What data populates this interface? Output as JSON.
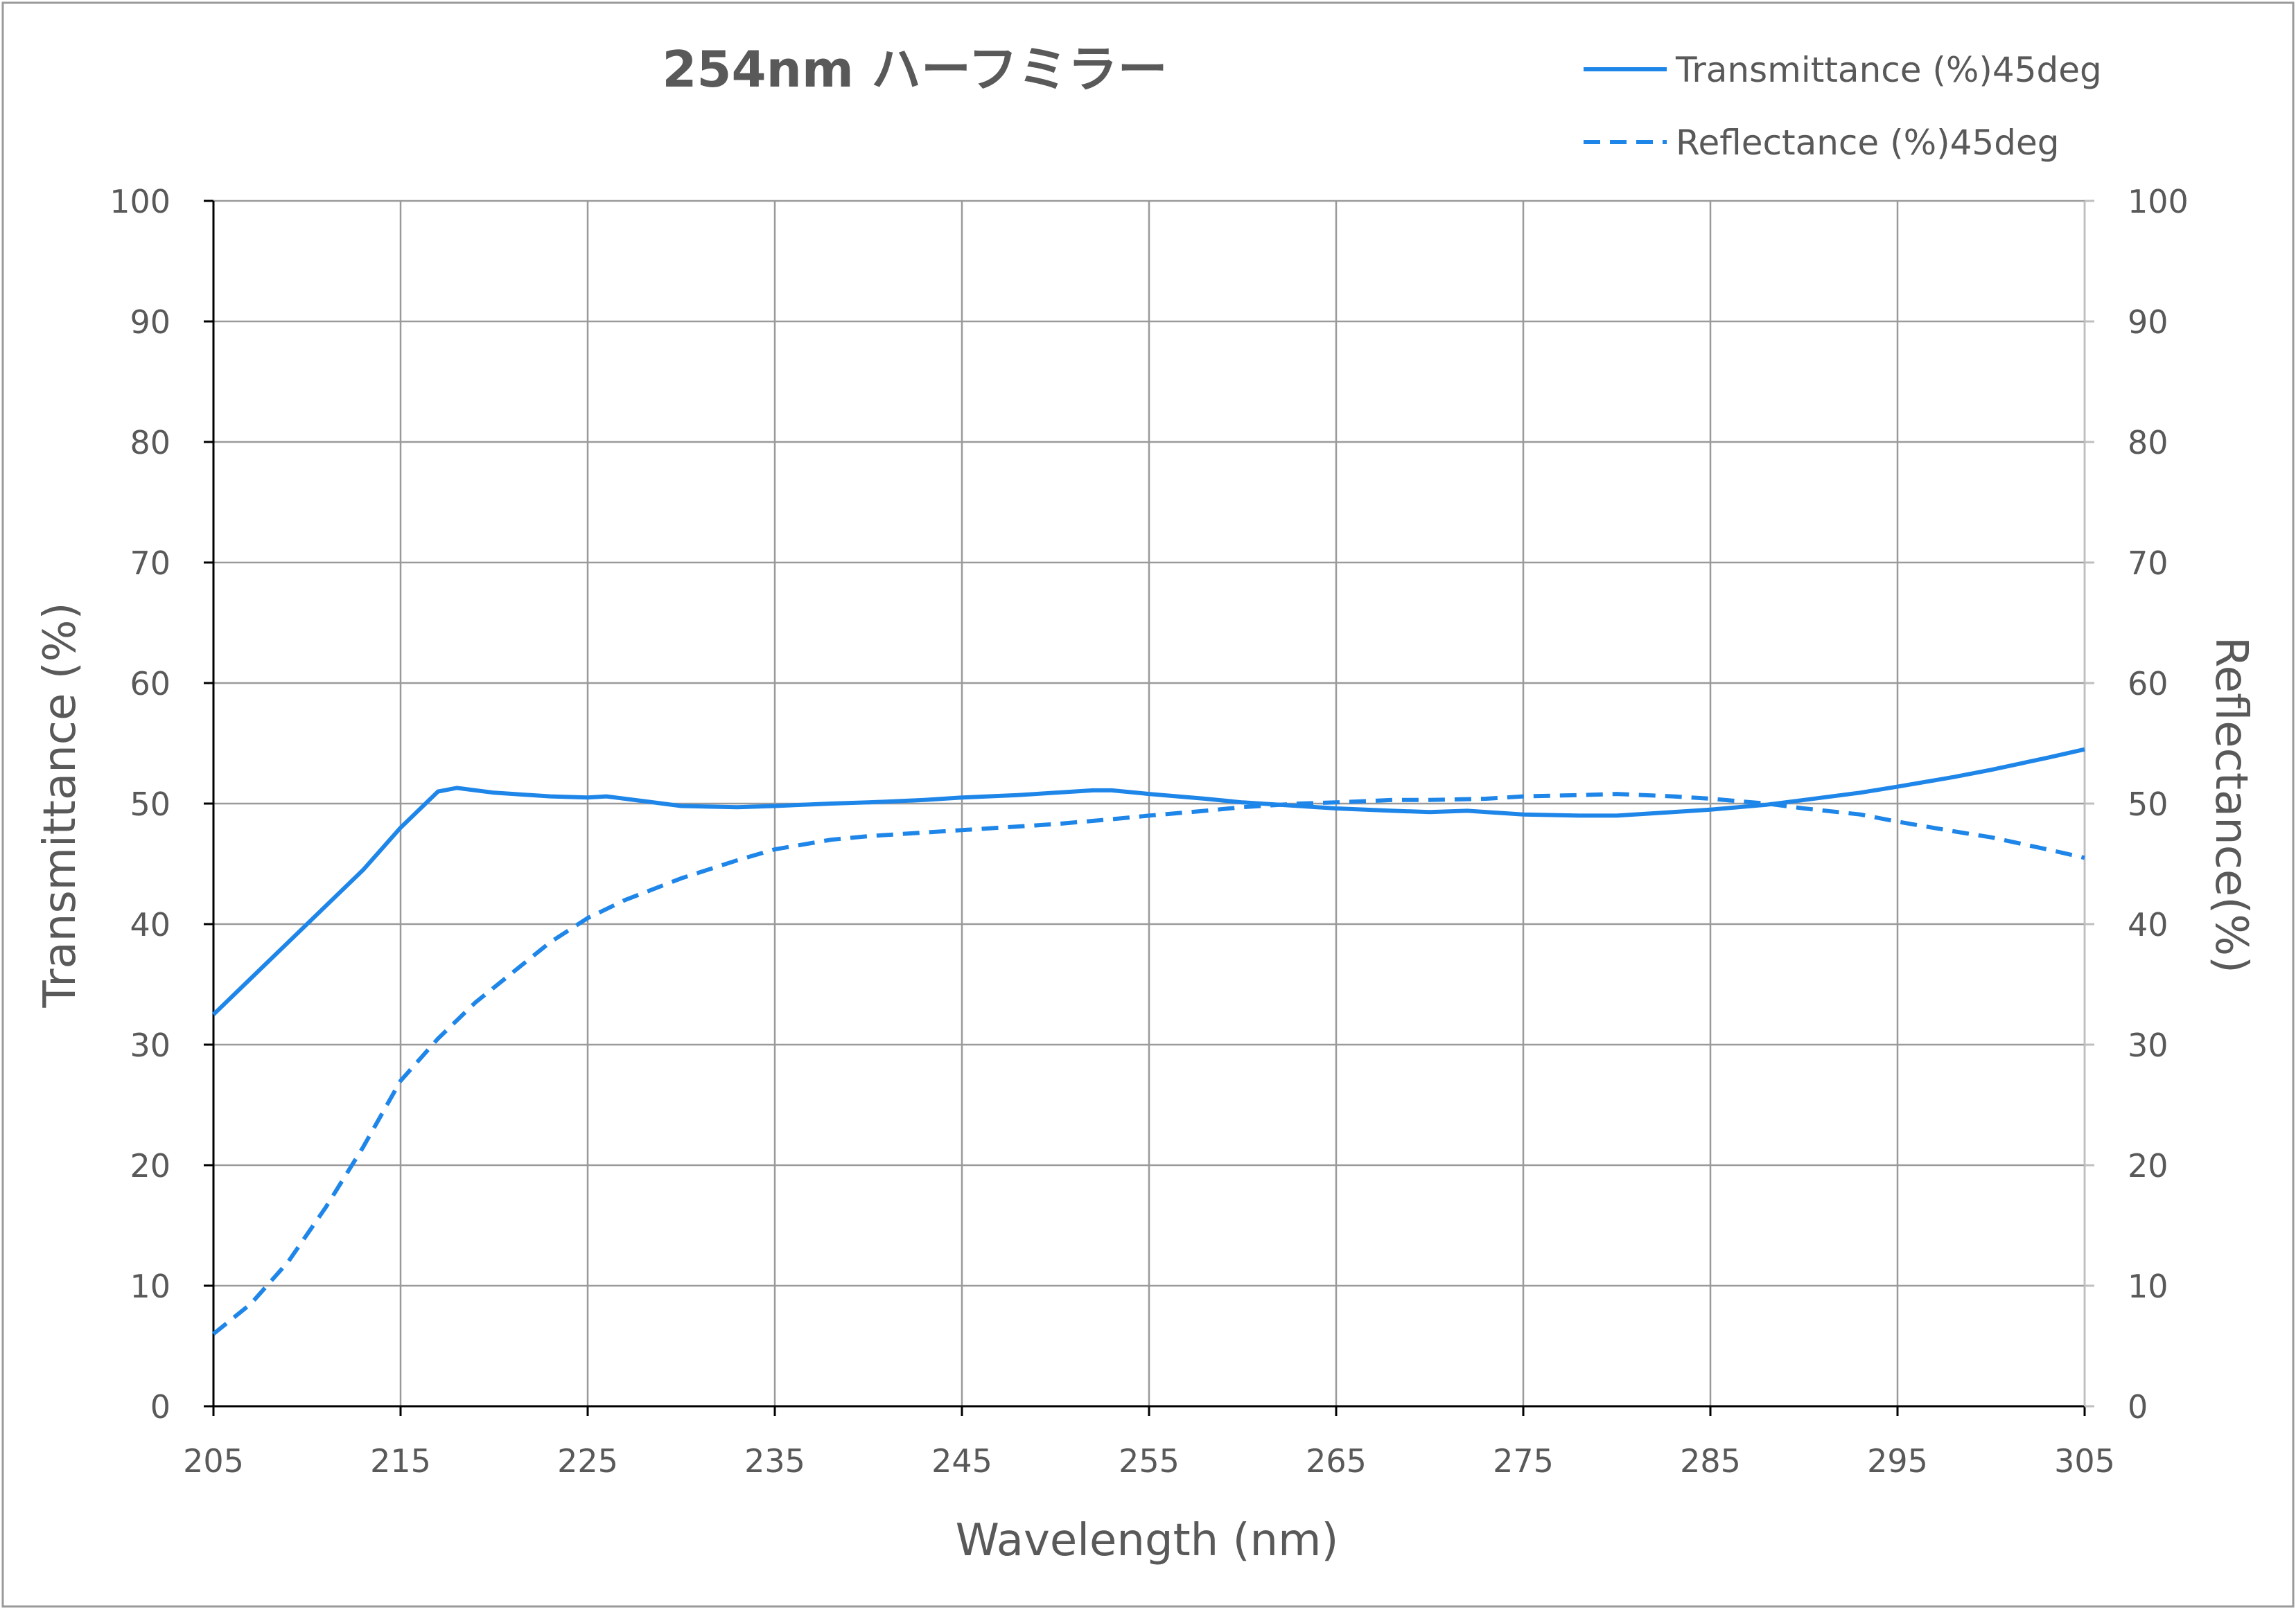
{
  "chart_data": {
    "type": "line",
    "title": "254nm ハーフミラー",
    "xlabel": "Wavelength (nm)",
    "ylabel": "Transmittance (%)",
    "y2label": "Reflectance(%)",
    "xlim": [
      205,
      305
    ],
    "ylim": [
      0,
      100
    ],
    "y2lim": [
      0,
      100
    ],
    "x_ticks": [
      "205",
      "215",
      "225",
      "235",
      "245",
      "255",
      "265",
      "275",
      "285",
      "295",
      "305"
    ],
    "y_ticks": [
      "0",
      "10",
      "20",
      "30",
      "40",
      "50",
      "60",
      "70",
      "80",
      "90",
      "100"
    ],
    "y2_ticks": [
      "0",
      "10",
      "20",
      "30",
      "40",
      "50",
      "60",
      "70",
      "80",
      "90",
      "100"
    ],
    "grid": true,
    "legend_position": "top-right",
    "series": [
      {
        "name": "Transmittance (%)45deg",
        "axis": "left",
        "style": "solid",
        "color": "#1F86E9",
        "x": [
          205,
          207,
          210,
          213,
          215,
          217,
          218,
          220,
          223,
          225,
          226,
          228,
          230,
          233,
          235,
          238,
          240,
          243,
          245,
          248,
          250,
          252,
          253,
          255,
          258,
          260,
          263,
          265,
          268,
          270,
          272,
          275,
          278,
          280,
          283,
          285,
          288,
          290,
          293,
          295,
          298,
          300,
          303,
          305
        ],
        "y": [
          32.5,
          35.5,
          40,
          44.5,
          48,
          51,
          51.3,
          50.9,
          50.6,
          50.5,
          50.6,
          50.2,
          49.8,
          49.7,
          49.8,
          50,
          50.1,
          50.3,
          50.5,
          50.7,
          50.9,
          51.1,
          51.1,
          50.8,
          50.4,
          50.1,
          49.8,
          49.6,
          49.4,
          49.3,
          49.4,
          49.1,
          49,
          49,
          49.3,
          49.5,
          49.9,
          50.3,
          50.9,
          51.4,
          52.2,
          52.8,
          53.8,
          54.5
        ]
      },
      {
        "name": "Reflectance (%)45deg",
        "axis": "right",
        "style": "dashed",
        "color": "#1F86E9",
        "x": [
          205,
          207,
          209,
          211,
          213,
          215,
          217,
          219,
          221,
          223,
          225,
          227,
          230,
          233,
          235,
          238,
          240,
          243,
          245,
          248,
          250,
          253,
          255,
          258,
          260,
          263,
          265,
          268,
          270,
          273,
          275,
          278,
          280,
          283,
          285,
          288,
          290,
          293,
          295,
          298,
          300,
          303,
          305
        ],
        "y": [
          6,
          8.5,
          12,
          16.5,
          21.5,
          27,
          30.5,
          33.5,
          36,
          38.5,
          40.5,
          42,
          43.8,
          45.3,
          46.2,
          47,
          47.3,
          47.6,
          47.8,
          48.1,
          48.3,
          48.7,
          49,
          49.4,
          49.7,
          50,
          50.1,
          50.3,
          50.3,
          50.4,
          50.6,
          50.7,
          50.8,
          50.6,
          50.4,
          50,
          49.6,
          49.1,
          48.5,
          47.7,
          47.2,
          46.2,
          45.5
        ]
      }
    ]
  }
}
